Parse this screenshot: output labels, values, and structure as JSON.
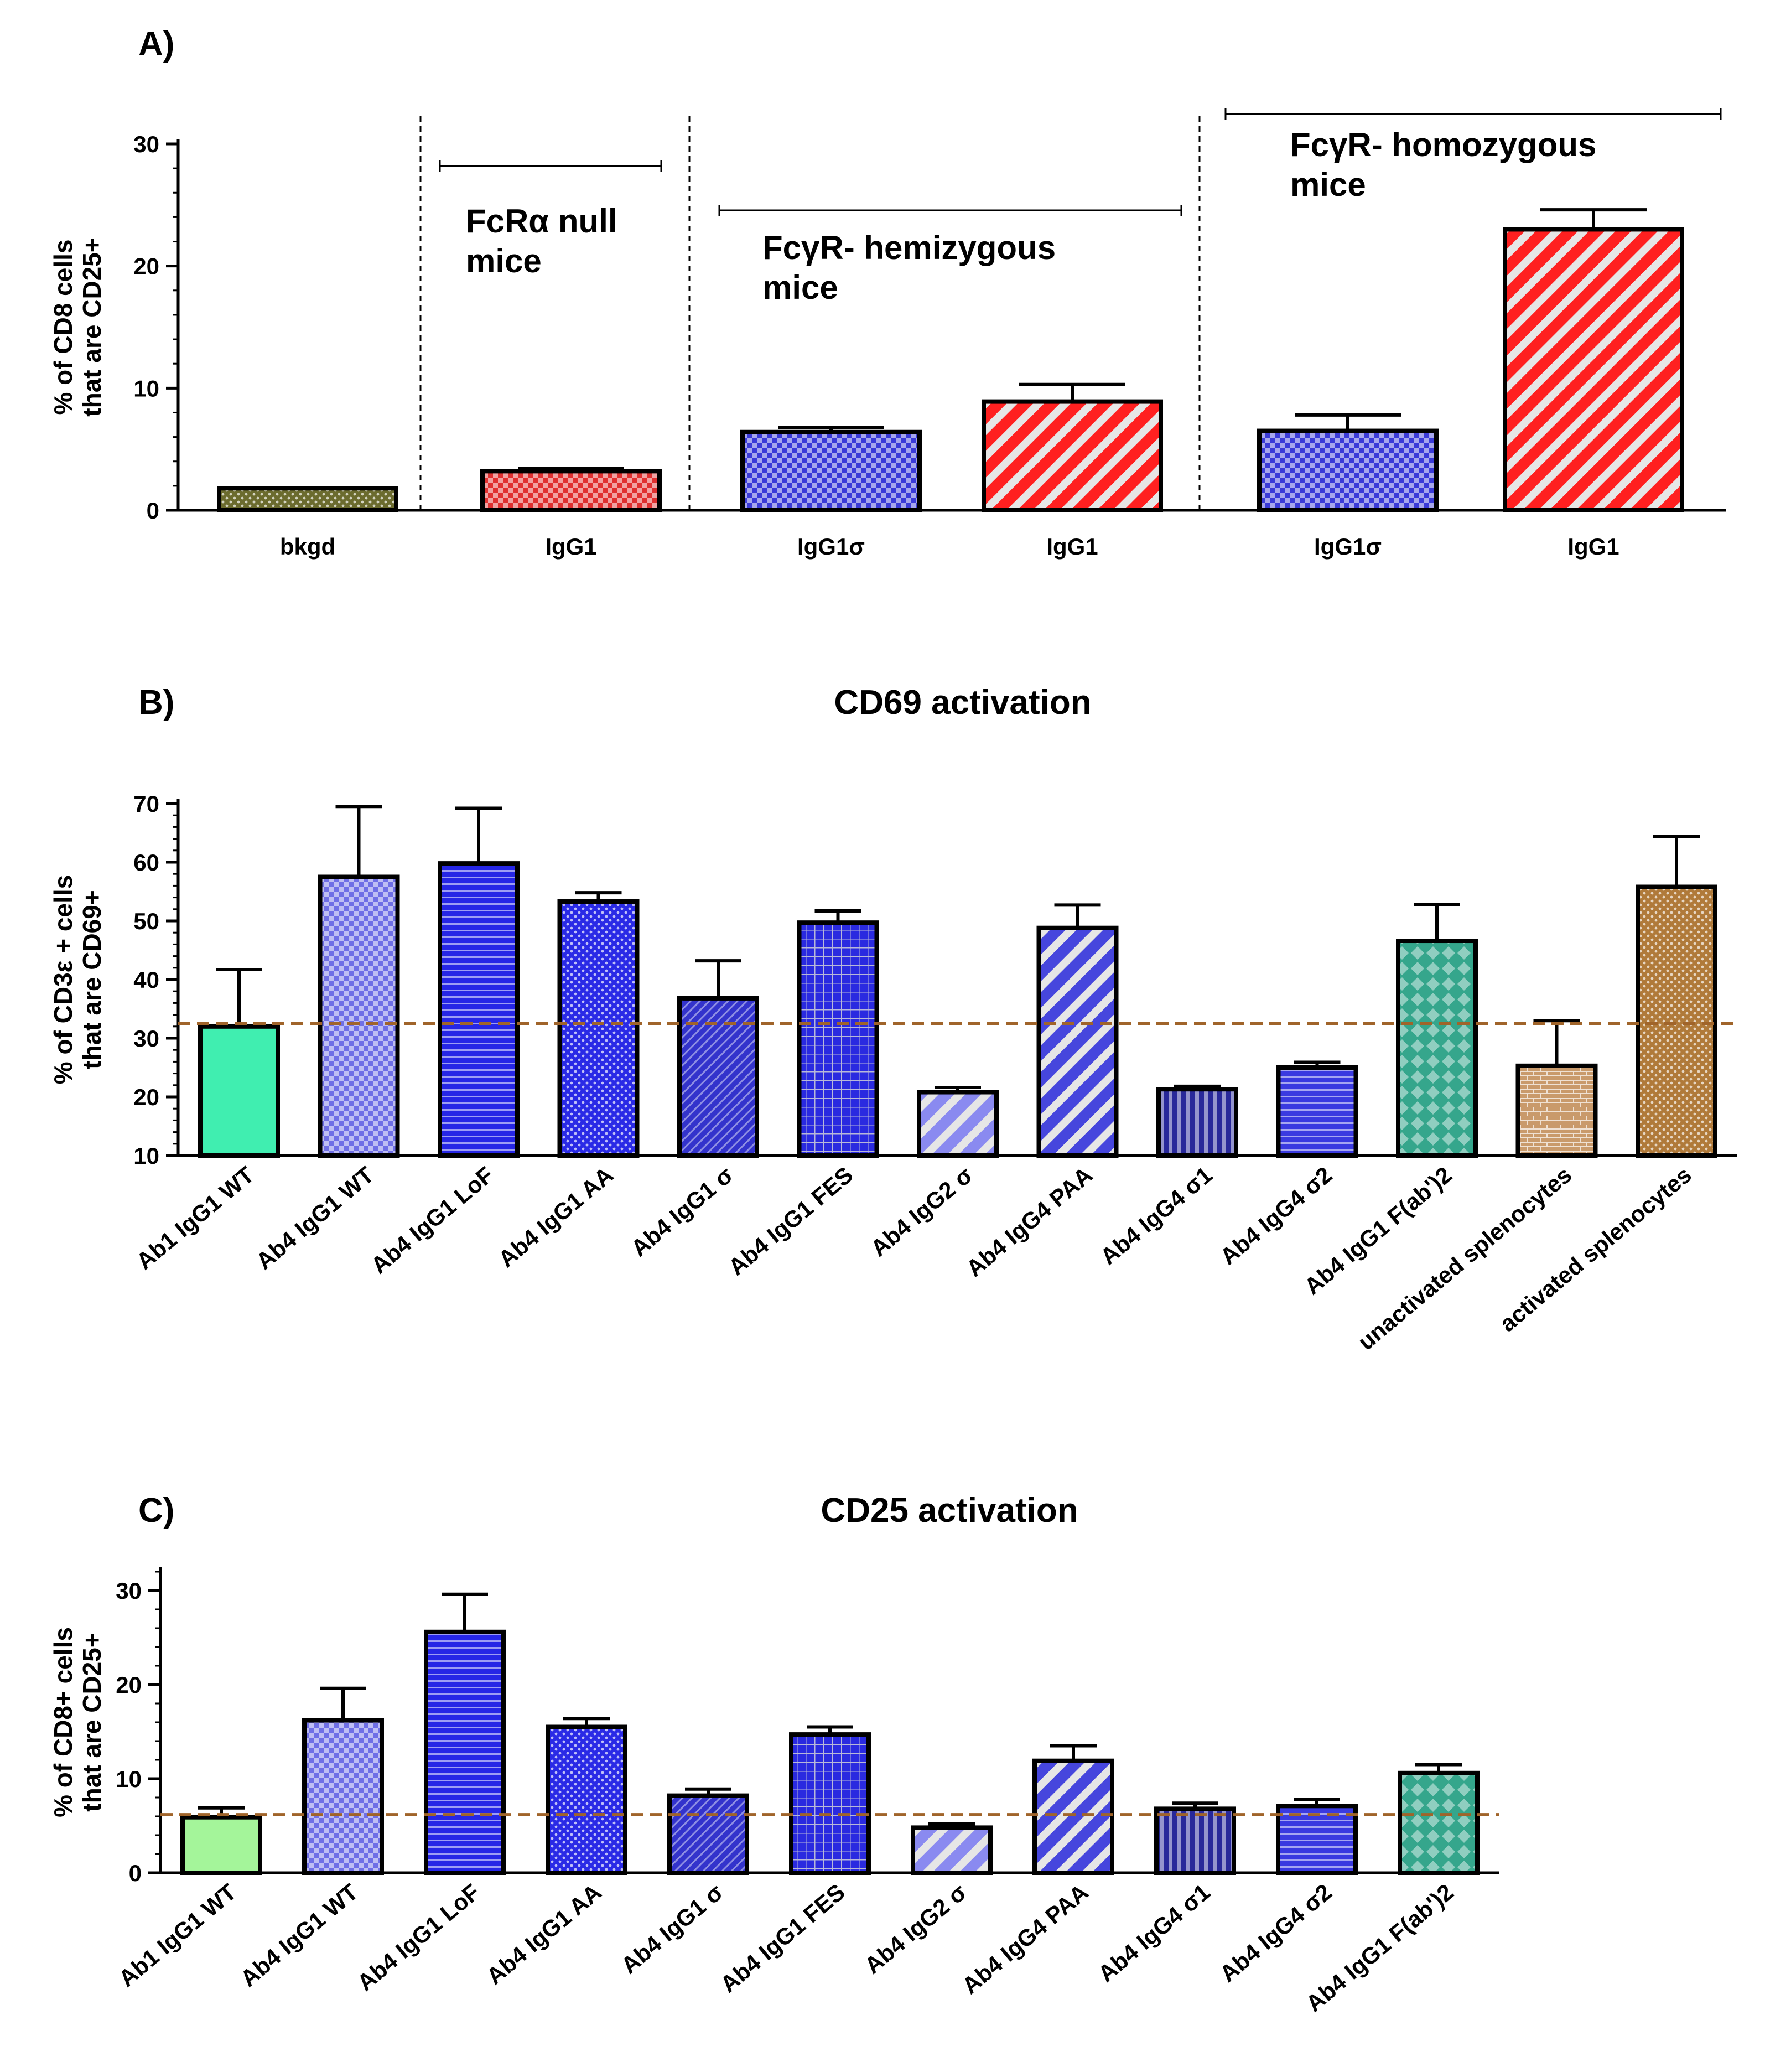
{
  "chart_data": [
    {
      "id": "A",
      "panel_label": "A)",
      "type": "bar",
      "title": "",
      "ylabel": [
        "% of CD8 cells",
        "that are CD25+"
      ],
      "ylim": [
        0,
        30
      ],
      "yticks": [
        0,
        10,
        20,
        30
      ],
      "categories": [
        "bkgd",
        "IgG1",
        "IgG1σ",
        "IgG1",
        "IgG1σ",
        "IgG1"
      ],
      "values": [
        1.8,
        3.2,
        6.4,
        8.9,
        6.5,
        23.0
      ],
      "errors": [
        0,
        0.2,
        0.4,
        1.4,
        1.3,
        1.6
      ],
      "fills": [
        "#6b6b2e",
        "#e03030",
        "#3a3ad8",
        "#ff2020",
        "#3a3ad8",
        "#ff2020"
      ],
      "patterns": [
        "dots",
        "check",
        "check",
        "diag-wide",
        "check",
        "diag-wide"
      ],
      "groups": [
        {
          "label": [
            "FcRα null",
            "mice"
          ]
        },
        {
          "label": [
            "FcγR- hemizygous",
            " mice"
          ]
        },
        {
          "label": [
            "FcγR- homozygous",
            " mice"
          ]
        }
      ]
    },
    {
      "id": "B",
      "panel_label": "B)",
      "type": "bar",
      "title": "CD69 activation",
      "ylabel": [
        "% of CD3ε + cells",
        "that are CD69+"
      ],
      "ylim": [
        10,
        70
      ],
      "yticks": [
        10,
        20,
        30,
        40,
        50,
        60,
        70
      ],
      "baseline": 32.5,
      "categories": [
        "Ab1 IgG1 WT",
        "Ab4 IgG1 WT",
        "Ab4 IgG1 LoF",
        "Ab4 IgG1 AA",
        "Ab4 IgG1 σ",
        "Ab4 IgG1 FES",
        "Ab4 IgG2 σ",
        "Ab4 IgG4 PAA",
        "Ab4 IgG4 σ1",
        "Ab4 IgG4 σ2",
        "Ab4 IgG1 F(ab')2",
        "unactivated splenocytes",
        "activated splenocytes"
      ],
      "values": [
        32,
        57.5,
        59.8,
        53.3,
        36.8,
        49.7,
        20.8,
        48.8,
        21.3,
        25.0,
        46.6,
        25.3,
        55.8
      ],
      "errors": [
        9.7,
        12.0,
        9.4,
        1.5,
        6.4,
        2.0,
        0.8,
        3.9,
        0.5,
        0.9,
        6.2,
        7.7,
        8.6
      ],
      "fills": [
        "#40eeb0",
        "#6f6fe6",
        "#2626e6",
        "#2a2ae6",
        "#3333cc",
        "#2a2ae0",
        "#8a8af0",
        "#4646dd",
        "#28289a",
        "#3a3ae0",
        "#35a68c",
        "#c99a6b",
        "#b07a3a"
      ],
      "patterns": [
        "solid",
        "check",
        "hlines",
        "dots",
        "diag-dense",
        "grid",
        "diag-wide",
        "diag-wide",
        "vlines",
        "hlines",
        "diamond",
        "bricks",
        "dots"
      ]
    },
    {
      "id": "C",
      "panel_label": "C)",
      "type": "bar",
      "title": "CD25 activation",
      "ylabel": [
        "% of CD8+ cells",
        "that are CD25+"
      ],
      "ylim": [
        0,
        32
      ],
      "yticks": [
        0,
        10,
        20,
        30
      ],
      "baseline": 6.2,
      "categories": [
        "Ab1 IgG1 WT",
        "Ab4 IgG1 WT",
        "Ab4 IgG1 LoF",
        "Ab4 IgG1 AA",
        "Ab4 IgG1 σ",
        "Ab4 IgG1 FES",
        "Ab4 IgG2 σ",
        "Ab4 IgG4 PAA",
        "Ab4 IgG4 σ1",
        "Ab4 IgG4 σ2",
        "Ab4 IgG1 F(ab')2"
      ],
      "values": [
        5.9,
        16.2,
        25.6,
        15.5,
        8.2,
        14.7,
        4.8,
        11.9,
        6.8,
        7.1,
        10.6
      ],
      "errors": [
        1.0,
        3.4,
        4.0,
        0.9,
        0.7,
        0.8,
        0.4,
        1.6,
        0.6,
        0.7,
        0.9
      ],
      "fills": [
        "#a4f59a",
        "#6f6fe6",
        "#2626e6",
        "#2a2ae6",
        "#3333cc",
        "#2a2ae0",
        "#8a8af0",
        "#4646dd",
        "#28289a",
        "#3a3ae0",
        "#35a68c"
      ],
      "patterns": [
        "solid",
        "check",
        "hlines",
        "dots",
        "diag-dense",
        "grid",
        "diag-wide",
        "diag-wide",
        "vlines",
        "hlines",
        "diamond"
      ]
    }
  ],
  "colors": {
    "axis": "#000000",
    "baseline": "#a0642a",
    "divider": "#000000"
  }
}
